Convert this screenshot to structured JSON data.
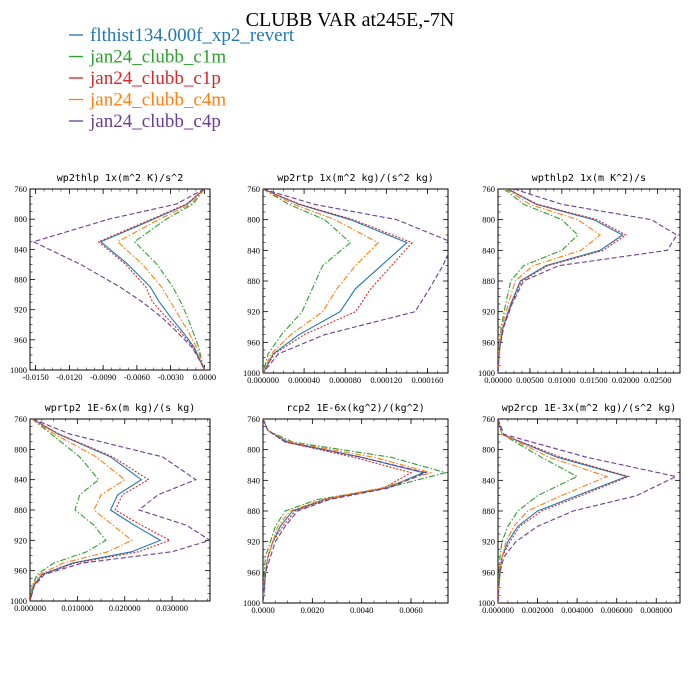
{
  "chart_data": {
    "type": "line",
    "title": "CLUBB VAR at245E,-7N",
    "legend": {
      "placement": "top-left",
      "entries": [
        {
          "name": "flthist134.000f_xp2_revert",
          "color": "#1f77b4",
          "dash": "solid"
        },
        {
          "name": "jan24_clubb_c1m",
          "color": "#2ca02c",
          "dash": "dashdot"
        },
        {
          "name": "jan24_clubb_c1p",
          "color": "#d62728",
          "dash": "dotted"
        },
        {
          "name": "jan24_clubb_c4m",
          "color": "#ff7f0e",
          "dash": "dashdot"
        },
        {
          "name": "jan24_clubb_c4p",
          "color": "#6a3d9a",
          "dash": "dashed"
        }
      ]
    },
    "grid": false,
    "y_axis": {
      "inverted": true,
      "ylim": [
        760,
        1000
      ],
      "ticks": [
        760,
        800,
        840,
        880,
        920,
        960,
        1000
      ]
    },
    "panels": [
      {
        "title": "wp2thlp  1x(m^2 K)/s^2",
        "xlim": [
          -0.0155,
          0.0005
        ],
        "xticks": [
          -0.015,
          -0.012,
          -0.009,
          -0.006,
          -0.003,
          0.0
        ],
        "xtick_labels": [
          "-0.0150",
          "-0.0120",
          "-0.0090",
          "-0.0060",
          "-0.0030",
          "0.0000"
        ],
        "levels": [
          760,
          780,
          800,
          830,
          860,
          890,
          910,
          930,
          950,
          970,
          990,
          1000
        ],
        "series": [
          {
            "name": "flthist134.000f_xp2_revert",
            "values": [
              0.0,
              -0.0015,
              -0.0045,
              -0.0092,
              -0.0068,
              -0.0048,
              -0.004,
              -0.003,
              -0.0019,
              -0.0009,
              -0.0003,
              0.0
            ]
          },
          {
            "name": "jan24_clubb_c1m",
            "values": [
              0.0,
              -0.001,
              -0.0034,
              -0.0062,
              -0.0042,
              -0.0028,
              -0.0021,
              -0.0015,
              -0.001,
              -0.0005,
              -0.0002,
              0.0
            ]
          },
          {
            "name": "jan24_clubb_c1p",
            "values": [
              0.0,
              -0.0016,
              -0.0047,
              -0.0094,
              -0.007,
              -0.0052,
              -0.0046,
              -0.0034,
              -0.0021,
              -0.001,
              -0.0003,
              0.0
            ]
          },
          {
            "name": "jan24_clubb_c4m",
            "values": [
              0.0,
              -0.0012,
              -0.004,
              -0.0077,
              -0.0055,
              -0.0038,
              -0.003,
              -0.0022,
              -0.0014,
              -0.0007,
              -0.0002,
              0.0
            ]
          },
          {
            "name": "jan24_clubb_c4p",
            "values": [
              0.0,
              -0.0025,
              -0.0085,
              -0.0152,
              -0.011,
              -0.0075,
              -0.0055,
              -0.0038,
              -0.0024,
              -0.0011,
              -0.0003,
              0.0
            ]
          }
        ]
      },
      {
        "title": "wp2rtp  1x(m^2 kg)/(s^2 kg)",
        "xlim": [
          0.0,
          0.00018
        ],
        "xticks": [
          0.0,
          4e-05,
          8e-05,
          0.00012,
          0.00016
        ],
        "xtick_labels": [
          "0.000000",
          "0.000040",
          "0.000080",
          "0.000120",
          "0.000160"
        ],
        "levels": [
          760,
          780,
          800,
          830,
          860,
          890,
          920,
          950,
          975,
          1000
        ],
        "series": [
          {
            "name": "flthist134.000f_xp2_revert",
            "values": [
              0.0,
              3.5e-05,
              8.5e-05,
              0.00014,
              0.000115,
              9e-05,
              7.5e-05,
              3.5e-05,
              1e-05,
              0.0
            ]
          },
          {
            "name": "jan24_clubb_c1m",
            "values": [
              0.0,
              2.5e-05,
              6e-05,
              8.5e-05,
              5.8e-05,
              4.8e-05,
              3.8e-05,
              1.8e-05,
              5e-06,
              0.0
            ]
          },
          {
            "name": "jan24_clubb_c1p",
            "values": [
              0.0,
              3.6e-05,
              8.8e-05,
              0.000145,
              0.000125,
              0.000105,
              9e-05,
              4e-05,
              1.1e-05,
              0.0
            ]
          },
          {
            "name": "jan24_clubb_c4m",
            "values": [
              0.0,
              3e-05,
              7e-05,
              0.000112,
              9e-05,
              7.2e-05,
              5.8e-05,
              2.7e-05,
              8e-06,
              0.0
            ]
          },
          {
            "name": "jan24_clubb_c4p",
            "values": [
              0.0,
              5e-05,
              0.00013,
              0.000185,
              0.000175,
              0.000162,
              0.000148,
              6e-05,
              1.5e-05,
              0.0
            ]
          }
        ]
      },
      {
        "title": "wpthlp2  1x(m K^2)/s",
        "xlim": [
          0.0,
          0.0285
        ],
        "xticks": [
          0.0,
          0.005,
          0.01,
          0.015,
          0.02,
          0.025
        ],
        "xtick_labels": [
          "0.00000",
          "0.00500",
          "0.01000",
          "0.01500",
          "0.02000",
          "0.02500"
        ],
        "levels": [
          760,
          780,
          800,
          820,
          840,
          860,
          880,
          910,
          940,
          970,
          1000
        ],
        "series": [
          {
            "name": "flthist134.000f_xp2_revert",
            "values": [
              0.0015,
              0.006,
              0.015,
              0.0195,
              0.016,
              0.0075,
              0.0035,
              0.002,
              0.0008,
              0.0002,
              0.0
            ]
          },
          {
            "name": "jan24_clubb_c1m",
            "values": [
              0.001,
              0.004,
              0.01,
              0.0125,
              0.01,
              0.004,
              0.002,
              0.0012,
              0.0005,
              0.0001,
              0.0
            ]
          },
          {
            "name": "jan24_clubb_c1p",
            "values": [
              0.0015,
              0.0062,
              0.0155,
              0.02,
              0.0165,
              0.0078,
              0.0037,
              0.0021,
              0.0008,
              0.0002,
              0.0
            ]
          },
          {
            "name": "jan24_clubb_c4m",
            "values": [
              0.0012,
              0.005,
              0.0125,
              0.016,
              0.013,
              0.0055,
              0.0027,
              0.0016,
              0.0006,
              0.0001,
              0.0
            ]
          },
          {
            "name": "jan24_clubb_c4p",
            "values": [
              0.0025,
              0.01,
              0.024,
              0.028,
              0.0265,
              0.0095,
              0.004,
              0.0022,
              0.0009,
              0.0002,
              0.0
            ]
          }
        ]
      },
      {
        "title": "wprtp2  1E-6x(m kg)/(s kg)",
        "xlim": [
          0.0,
          0.038
        ],
        "xticks": [
          0.0,
          0.01,
          0.02,
          0.03
        ],
        "xtick_labels": [
          "0.000000",
          "0.010000",
          "0.020000",
          "0.030000"
        ],
        "levels": [
          760,
          780,
          810,
          840,
          860,
          880,
          900,
          920,
          935,
          950,
          965,
          980,
          1000
        ],
        "series": [
          {
            "name": "flthist134.000f_xp2_revert",
            "values": [
              0.0005,
              0.006,
              0.017,
              0.0235,
              0.0185,
              0.017,
              0.022,
              0.0275,
              0.0215,
              0.009,
              0.0025,
              0.0008,
              0.0
            ]
          },
          {
            "name": "jan24_clubb_c1m",
            "values": [
              0.0004,
              0.0045,
              0.0105,
              0.0145,
              0.0105,
              0.0095,
              0.0135,
              0.016,
              0.012,
              0.005,
              0.0015,
              0.0005,
              0.0
            ]
          },
          {
            "name": "jan24_clubb_c1p",
            "values": [
              0.0005,
              0.0062,
              0.0175,
              0.025,
              0.0195,
              0.018,
              0.0235,
              0.0295,
              0.023,
              0.0095,
              0.0027,
              0.0008,
              0.0
            ]
          },
          {
            "name": "jan24_clubb_c4m",
            "values": [
              0.0004,
              0.0052,
              0.014,
              0.02,
              0.015,
              0.0135,
              0.0175,
              0.0215,
              0.0165,
              0.007,
              0.002,
              0.0006,
              0.0
            ]
          },
          {
            "name": "jan24_clubb_c4p",
            "values": [
              0.0006,
              0.0085,
              0.028,
              0.035,
              0.027,
              0.023,
              0.033,
              0.038,
              0.03,
              0.011,
              0.003,
              0.0009,
              0.0
            ]
          }
        ]
      },
      {
        "title": "rcp2  1E-6x(kg^2)/(kg^2)",
        "xlim": [
          0.0,
          0.0075
        ],
        "xticks": [
          0.0,
          0.002,
          0.004,
          0.006
        ],
        "xtick_labels": [
          "0.0000",
          "0.0020",
          "0.0040",
          "0.0060"
        ],
        "levels": [
          760,
          775,
          790,
          810,
          830,
          850,
          865,
          880,
          900,
          920,
          940,
          960,
          980,
          1000
        ],
        "series": [
          {
            "name": "flthist134.000f_xp2_revert",
            "values": [
              0.0,
              0.0002,
              0.001,
              0.004,
              0.0065,
              0.005,
              0.0025,
              0.0012,
              0.0007,
              0.0004,
              0.0002,
              0.0001,
              5e-05,
              0.0
            ]
          },
          {
            "name": "jan24_clubb_c1m",
            "values": [
              0.0,
              0.0002,
              0.0012,
              0.0052,
              0.0074,
              0.005,
              0.0022,
              0.0009,
              0.0005,
              0.0003,
              0.0001,
              5e-05,
              2e-05,
              0.0
            ]
          },
          {
            "name": "jan24_clubb_c1p",
            "values": [
              0.0,
              0.0002,
              0.0009,
              0.0037,
              0.006,
              0.0049,
              0.0026,
              0.0013,
              0.0008,
              0.0004,
              0.0002,
              0.0001,
              5e-05,
              0.0
            ]
          },
          {
            "name": "jan24_clubb_c4m",
            "values": [
              0.0,
              0.0002,
              0.0011,
              0.0045,
              0.0068,
              0.0048,
              0.0024,
              0.0011,
              0.0006,
              0.0004,
              0.0002,
              0.0001,
              4e-05,
              0.0
            ]
          },
          {
            "name": "jan24_clubb_c4p",
            "values": [
              0.0,
              0.0002,
              0.0009,
              0.004,
              0.0066,
              0.0051,
              0.0027,
              0.0014,
              0.0009,
              0.0005,
              0.0003,
              0.0001,
              6e-05,
              0.0
            ]
          }
        ]
      },
      {
        "title": "wp2rcp  1E-3x(m^2 kg)/(s^2 kg)",
        "xlim": [
          0.0,
          0.0092
        ],
        "xticks": [
          0.0,
          0.002,
          0.004,
          0.006,
          0.008
        ],
        "xtick_labels": [
          "0.000000",
          "0.002000",
          "0.004000",
          "0.006000",
          "0.008000"
        ],
        "levels": [
          760,
          780,
          810,
          835,
          860,
          880,
          900,
          920,
          940,
          960,
          980,
          1000
        ],
        "series": [
          {
            "name": "flthist134.000f_xp2_revert",
            "values": [
              0.0,
              0.0002,
              0.003,
              0.0065,
              0.004,
              0.002,
              0.001,
              0.0005,
              0.0002,
              0.0001,
              3e-05,
              0.0
            ]
          },
          {
            "name": "jan24_clubb_c1m",
            "values": [
              0.0,
              0.0002,
              0.0022,
              0.004,
              0.002,
              0.001,
              0.0005,
              0.0002,
              0.0001,
              5e-05,
              2e-05,
              0.0
            ]
          },
          {
            "name": "jan24_clubb_c1p",
            "values": [
              0.0,
              0.0002,
              0.0032,
              0.0066,
              0.0042,
              0.0022,
              0.0011,
              0.0006,
              0.0002,
              0.0001,
              3e-05,
              0.0
            ]
          },
          {
            "name": "jan24_clubb_c4m",
            "values": [
              0.0,
              0.0002,
              0.0026,
              0.0055,
              0.0032,
              0.0015,
              0.0008,
              0.0004,
              0.0002,
              0.0001,
              2e-05,
              0.0
            ]
          },
          {
            "name": "jan24_clubb_c4p",
            "values": [
              0.0,
              0.0003,
              0.0045,
              0.009,
              0.007,
              0.0038,
              0.002,
              0.0009,
              0.0003,
              0.0001,
              4e-05,
              0.0
            ]
          }
        ]
      }
    ]
  }
}
